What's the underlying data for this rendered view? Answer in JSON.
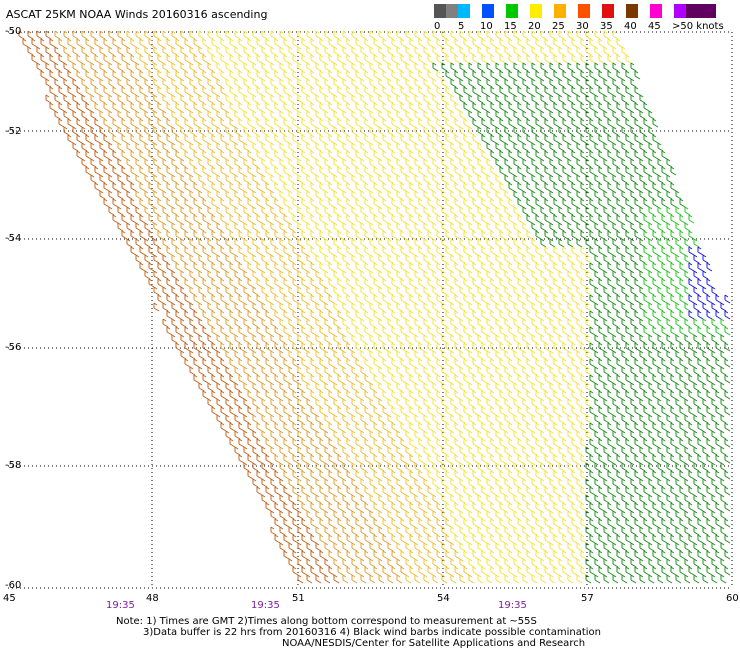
{
  "title": "ASCAT 25KM NOAA Winds 20160316 ascending",
  "legend": {
    "colors": [
      "#555555",
      "#808080",
      "#00b8ff",
      "#0050ff",
      "#00c800",
      "#ffee00",
      "#ffb000",
      "#ff5000",
      "#e01010",
      "#7a3800",
      "#ff00d0",
      "#b000ff",
      "#600060"
    ],
    "ticks": [
      "0",
      "5",
      "10",
      "15",
      "20",
      "25",
      "30",
      "35",
      "40",
      "45",
      ">50 knots"
    ]
  },
  "axes": {
    "x_ticks": [
      "45",
      "48",
      "51",
      "54",
      "57",
      "60"
    ],
    "y_ticks": [
      "-50",
      "-52",
      "-54",
      "-56",
      "-58",
      "-60"
    ]
  },
  "times": [
    "19:35",
    "19:35",
    "19:35"
  ],
  "notes": [
    "Note: 1) Times are GMT 2)Times along bottom correspond to measurement at ~55S",
    "3)Data buffer is 22 hrs from 20160316 4) Black wind barbs indicate possible contamination",
    "NOAA/NESDIS/Center for Satellite Applications and Research"
  ]
}
